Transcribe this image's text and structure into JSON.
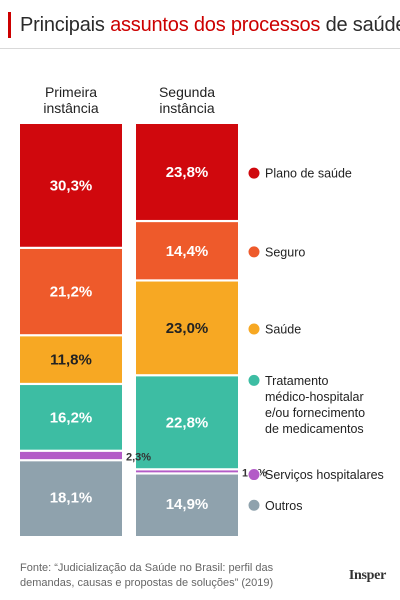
{
  "title": {
    "part1": "Principais ",
    "highlight": "assuntos dos processos",
    "part2": " de saúde"
  },
  "colors": {
    "Plano de saúde": "#d0080d",
    "Seguro": "#ee5a2b",
    "Saúde": "#f7a823",
    "Tratamento médico-hospitalar e/ou fornecimento de medicamentos": "#3dbda3",
    "Serviços hospitalares": "#b35bc7",
    "Outros": "#8fa2ad"
  },
  "chart_data": {
    "type": "bar",
    "stacked": true,
    "categories": [
      "Primeira instância",
      "Segunda instância"
    ],
    "category_lines": [
      [
        "Primeira",
        "instância"
      ],
      [
        "Segunda",
        "instância"
      ]
    ],
    "series": [
      {
        "name": "Plano de saúde",
        "values": [
          30.3,
          23.8
        ],
        "labels": [
          "30,3%",
          "23,8%"
        ]
      },
      {
        "name": "Seguro",
        "values": [
          21.2,
          14.4
        ],
        "labels": [
          "21,2%",
          "14,4%"
        ]
      },
      {
        "name": "Saúde",
        "values": [
          11.8,
          23.0
        ],
        "labels": [
          "11,8%",
          "23,0%"
        ]
      },
      {
        "name": "Tratamento médico-hospitalar e/ou fornecimento de medicamentos",
        "values": [
          16.2,
          22.8
        ],
        "labels": [
          "16,2%",
          "22,8%"
        ]
      },
      {
        "name": "Serviços hospitalares",
        "values": [
          2.3,
          1.0
        ],
        "labels": [
          "2,3%",
          "1,0%"
        ]
      },
      {
        "name": "Outros",
        "values": [
          18.1,
          14.9
        ],
        "labels": [
          "18,1%",
          "14,9%"
        ]
      }
    ],
    "legend": [
      {
        "lines": [
          "Plano de saúde"
        ]
      },
      {
        "lines": [
          "Seguro"
        ]
      },
      {
        "lines": [
          "Saúde"
        ]
      },
      {
        "lines": [
          "Tratamento",
          "médico-hospitalar",
          "e/ou fornecimento",
          "de medicamentos"
        ]
      },
      {
        "lines": [
          "Serviços hospitalares"
        ]
      },
      {
        "lines": [
          "Outros"
        ]
      }
    ],
    "legend_placement": "right",
    "ylim": [
      0,
      100
    ]
  },
  "footer": {
    "source": "Fonte: “Judicialização da Saúde no Brasil: perfil das demandas, causas e propostas de soluções” (2019)"
  },
  "logo": "Insper"
}
